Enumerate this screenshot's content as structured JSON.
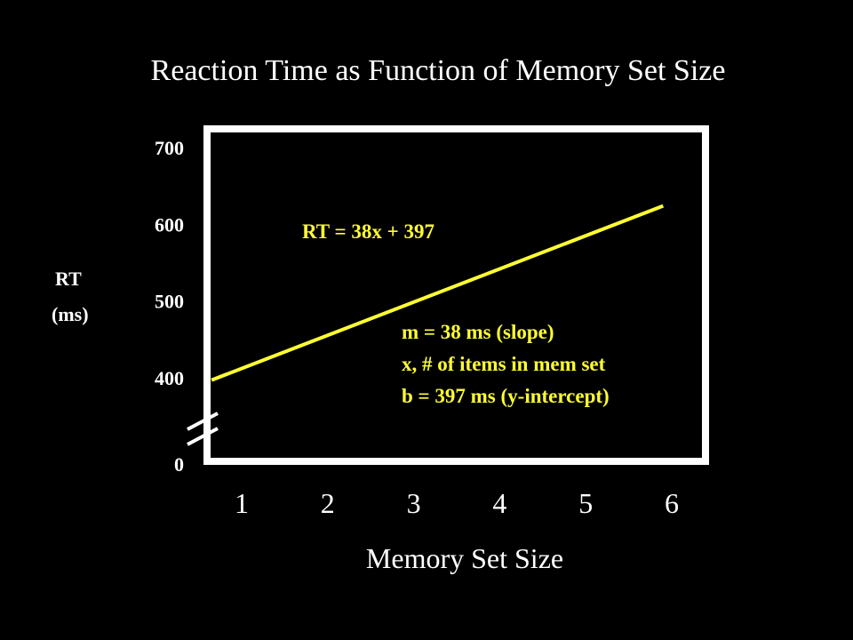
{
  "chart_data": {
    "type": "line",
    "title": "Reaction Time as Function of Memory Set Size",
    "xlabel": "Memory Set Size",
    "ylabel_line1": "RT",
    "ylabel_line2": "(ms)",
    "x_ticks": [
      "1",
      "2",
      "3",
      "4",
      "5",
      "6"
    ],
    "y_ticks": [
      "0",
      "400",
      "500",
      "600",
      "700"
    ],
    "y_tick_values": [
      0,
      400,
      500,
      600,
      700
    ],
    "axis_break": true,
    "series": [
      {
        "x": [
          0.65,
          5.9
        ],
        "y": [
          397,
          624
        ]
      }
    ],
    "equation_label": "RT = 38x + 397",
    "annotations": [
      "m = 38 ms (slope)",
      "x, # of items in mem set",
      "b = 397 ms (y-intercept)"
    ],
    "colors": {
      "background": "#000000",
      "frame": "#ffffff",
      "text": "#ffffff",
      "series": "#ffff33"
    }
  }
}
